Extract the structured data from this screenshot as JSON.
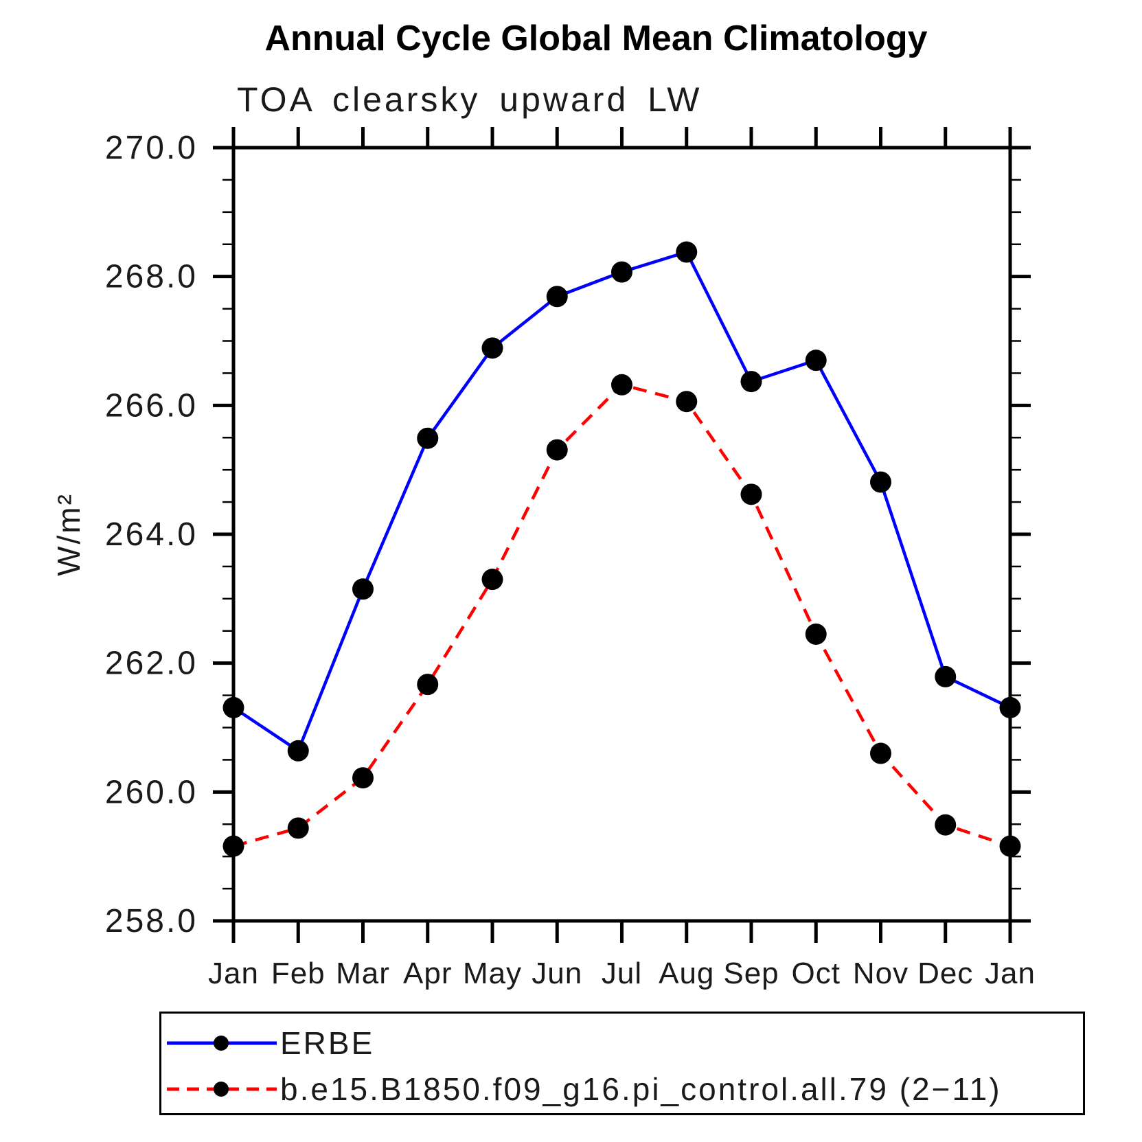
{
  "page": {
    "title": "Annual Cycle Global Mean Climatology",
    "subtitle": "TOA clearsky upward LW"
  },
  "chart_data": {
    "type": "line",
    "title": "Annual Cycle Global Mean Climatology",
    "subtitle": "TOA clearsky upward LW",
    "ylabel": "W/m²",
    "xlabel": "",
    "x_categories": [
      "Jan",
      "Feb",
      "Mar",
      "Apr",
      "May",
      "Jun",
      "Jul",
      "Aug",
      "Sep",
      "Oct",
      "Nov",
      "Dec",
      "Jan"
    ],
    "ylim": [
      258.0,
      270.0
    ],
    "ytick_major_step": 2.0,
    "ytick_minor_step": 0.5,
    "grid": "off",
    "legend_position": "bottom",
    "series": [
      {
        "name": "ERBE",
        "line_style": "solid",
        "color": "#0000ff",
        "marker": "circle",
        "marker_color": "#000000",
        "values": [
          261.31,
          260.64,
          263.15,
          265.49,
          266.89,
          267.69,
          268.07,
          268.38,
          266.37,
          266.7,
          264.81,
          261.79,
          261.31
        ]
      },
      {
        "name": "b.e15.B1850.f09_g16.pi_control.all.79 (2−11)",
        "line_style": "dashed",
        "color": "#ff0000",
        "marker": "circle",
        "marker_color": "#000000",
        "values": [
          259.16,
          259.44,
          260.22,
          261.67,
          263.3,
          265.31,
          266.32,
          266.06,
          264.62,
          262.45,
          260.6,
          259.49,
          259.16
        ]
      }
    ]
  },
  "colors": {
    "axis": "#000000",
    "text": "#1a1a1a",
    "background": "#ffffff"
  }
}
